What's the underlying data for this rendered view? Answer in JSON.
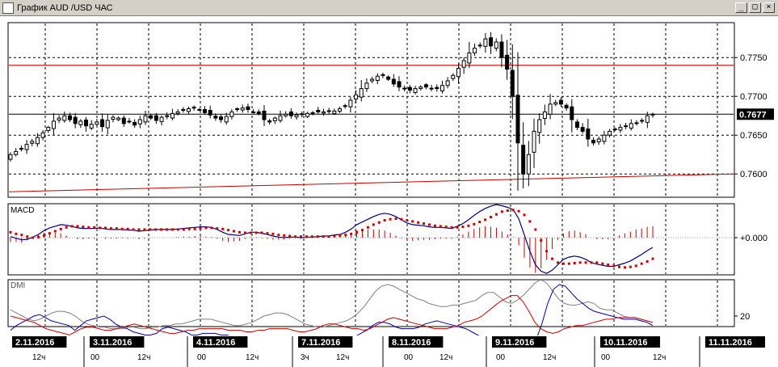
{
  "window": {
    "title": "График AUD /USD  ЧАС",
    "buttons": {
      "minimize": "_",
      "maximize": "□",
      "close": "×"
    }
  },
  "chart_data": [
    {
      "type": "candlestick",
      "panel": "price",
      "ylim": [
        0.757,
        0.7795
      ],
      "y_ticks": [
        "0.7750",
        "0.7700",
        "0.7650",
        "0.7600"
      ],
      "y_tick_values": [
        0.775,
        0.77,
        0.765,
        0.76
      ],
      "current_price": "0.7677",
      "current_price_value": 0.7677,
      "resistance_level": 0.774,
      "trendline": {
        "start": [
          0,
          0.7577
        ],
        "end": [
          127,
          0.76
        ]
      },
      "colors": {
        "resistance": "#cc0000",
        "trendline": "#cc0000",
        "candle": "#000000",
        "current_line": "#000000"
      },
      "close": [
        0.7625,
        0.7629,
        0.7633,
        0.7638,
        0.7642,
        0.7647,
        0.7653,
        0.766,
        0.7668,
        0.7672,
        0.7675,
        0.767,
        0.7665,
        0.7668,
        0.7662,
        0.7664,
        0.7667,
        0.7661,
        0.7669,
        0.7673,
        0.7672,
        0.7665,
        0.7668,
        0.7663,
        0.767,
        0.7675,
        0.7672,
        0.7669,
        0.7673,
        0.7675,
        0.7678,
        0.768,
        0.7682,
        0.7684,
        0.7686,
        0.7683,
        0.7679,
        0.7676,
        0.7672,
        0.767,
        0.7674,
        0.768,
        0.7684,
        0.7685,
        0.7683,
        0.768,
        0.7678,
        0.767,
        0.7667,
        0.7672,
        0.7675,
        0.7677,
        0.7675,
        0.7676,
        0.7677,
        0.7678,
        0.7679,
        0.768,
        0.768,
        0.7681,
        0.7681,
        0.7684,
        0.7688,
        0.7695,
        0.7702,
        0.771,
        0.7717,
        0.7722,
        0.7726,
        0.7728,
        0.7722,
        0.7716,
        0.7712,
        0.771,
        0.7708,
        0.771,
        0.7712,
        0.7712,
        0.771,
        0.771,
        0.7714,
        0.772,
        0.7727,
        0.7736,
        0.7746,
        0.7756,
        0.7762,
        0.7766,
        0.7774,
        0.7765,
        0.777,
        0.775,
        0.7735,
        0.77,
        0.764,
        0.76,
        0.7625,
        0.7655,
        0.767,
        0.768,
        0.769,
        0.7692,
        0.769,
        0.7685,
        0.767,
        0.766,
        0.7655,
        0.7645,
        0.764,
        0.7645,
        0.765,
        0.7655,
        0.7658,
        0.766,
        0.7662,
        0.7665,
        0.7666,
        0.7668,
        0.7675,
        0.7677
      ]
    },
    {
      "type": "line",
      "panel": "indicator",
      "title": "MACD",
      "y_ticks": [
        "+0.000"
      ],
      "series": [
        {
          "style": "line",
          "color": "#000080",
          "values": [
            0.2,
            -0.1,
            -0.4,
            -0.3,
            0.1,
            0.6,
            1.3,
            1.8,
            2.1,
            2.4,
            2.3,
            2.1,
            1.8,
            1.7,
            1.7,
            1.7,
            1.8,
            1.6,
            1.5,
            1.5,
            1.5,
            1.4,
            1.4,
            1.2,
            1.3,
            1.4,
            1.5,
            1.5,
            1.5,
            1.5,
            1.6,
            1.7,
            1.8,
            1.9,
            2.0,
            2.0,
            1.9,
            1.5,
            1.0,
            0.6,
            0.5,
            0.4,
            0.7,
            1.0,
            1.0,
            0.8,
            0.6,
            0.3,
            0.1,
            0.0,
            0.1,
            0.1,
            0.0,
            0.1,
            0.1,
            0.2,
            0.3,
            0.3,
            0.5,
            0.6,
            1.0,
            1.6,
            2.4,
            2.9,
            3.4,
            3.9,
            4.3,
            4.5,
            4.3,
            3.9,
            3.3,
            2.7,
            2.4,
            2.3,
            2.2,
            2.0,
            1.9,
            1.9,
            1.8,
            1.7,
            2.1,
            2.6,
            3.3,
            4.1,
            4.8,
            5.4,
            5.8,
            6.1,
            5.9,
            5.6,
            5.2,
            3.5,
            0.5,
            -2.5,
            -5.0,
            -6.2,
            -6.6,
            -6.0,
            -5.0,
            -4.0,
            -3.6,
            -3.4,
            -3.6,
            -4.0,
            -4.6,
            -4.9,
            -5.1,
            -5.3,
            -5.3,
            -5.0,
            -4.7,
            -4.3,
            -3.7,
            -3.1,
            -2.4,
            -1.8
          ]
        },
        {
          "style": "dots",
          "color": "#cc0000",
          "values": [
            1.0,
            0.7,
            0.5,
            0.2,
            0.0,
            0.1,
            0.4,
            0.8,
            1.2,
            1.6,
            1.9,
            2.1,
            2.1,
            2.0,
            1.9,
            1.9,
            1.8,
            1.8,
            1.7,
            1.7,
            1.6,
            1.6,
            1.5,
            1.5,
            1.5,
            1.5,
            1.5,
            1.5,
            1.5,
            1.5,
            1.5,
            1.5,
            1.6,
            1.6,
            1.7,
            1.8,
            1.8,
            1.7,
            1.6,
            1.4,
            1.2,
            1.0,
            0.9,
            0.9,
            0.9,
            0.9,
            0.8,
            0.7,
            0.5,
            0.4,
            0.3,
            0.2,
            0.2,
            0.2,
            0.2,
            0.2,
            0.2,
            0.2,
            0.3,
            0.4,
            0.5,
            0.7,
            1.0,
            1.4,
            1.9,
            2.4,
            2.8,
            3.2,
            3.4,
            3.5,
            3.4,
            3.2,
            3.0,
            2.8,
            2.6,
            2.4,
            2.2,
            2.1,
            2.0,
            1.9,
            1.9,
            2.0,
            2.2,
            2.5,
            2.9,
            3.3,
            3.8,
            4.3,
            4.8,
            5.0,
            5.1,
            4.9,
            4.2,
            3.0,
            1.5,
            -0.5,
            -2.5,
            -3.9,
            -4.6,
            -4.8,
            -4.8,
            -4.7,
            -4.6,
            -4.6,
            -4.6,
            -4.6,
            -4.8,
            -5.0,
            -5.2,
            -5.4,
            -5.5,
            -5.4,
            -5.2,
            -4.8,
            -4.4,
            -3.9
          ]
        },
        {
          "style": "histogram",
          "color": "#cc0000",
          "values": [
            -0.8,
            -0.8,
            -0.9,
            -0.5,
            0.1,
            0.5,
            0.9,
            1.0,
            0.9,
            0.8,
            0.4,
            0.0,
            -0.3,
            -0.3,
            -0.2,
            -0.2,
            0.0,
            -0.2,
            -0.2,
            -0.2,
            -0.1,
            -0.2,
            -0.1,
            -0.3,
            -0.2,
            -0.1,
            0.0,
            0.0,
            0.0,
            0.0,
            0.1,
            0.2,
            0.2,
            0.3,
            0.3,
            0.2,
            0.1,
            -0.2,
            -0.6,
            -0.8,
            -0.7,
            -0.6,
            -0.2,
            0.1,
            0.1,
            -0.1,
            -0.2,
            -0.4,
            -0.4,
            -0.4,
            -0.2,
            -0.1,
            -0.2,
            -0.1,
            -0.1,
            0.0,
            0.1,
            0.1,
            0.2,
            0.2,
            0.5,
            0.9,
            1.4,
            1.5,
            1.5,
            1.5,
            1.5,
            1.3,
            0.9,
            0.4,
            -0.1,
            -0.5,
            -0.6,
            -0.5,
            -0.4,
            -0.4,
            -0.3,
            -0.2,
            -0.2,
            -0.2,
            0.2,
            0.6,
            1.1,
            1.6,
            1.9,
            2.1,
            2.0,
            1.8,
            1.1,
            0.6,
            0.1,
            -1.4,
            -3.7,
            -5.5,
            -6.5,
            -5.7,
            -4.1,
            -2.1,
            -0.4,
            0.8,
            1.2,
            1.3,
            1.0,
            0.6,
            0.0,
            -0.3,
            -0.3,
            -0.3,
            -0.1,
            0.4,
            0.8,
            1.1,
            1.5,
            1.7,
            2.0,
            2.1
          ]
        }
      ],
      "colors": {
        "zero_line": "#000000"
      }
    },
    {
      "type": "line",
      "panel": "indicator",
      "title": "DMI",
      "y_ticks": [
        "20"
      ],
      "y_tick_values": [
        20
      ],
      "ylim": [
        0,
        45
      ],
      "series": [
        {
          "color": "#808080",
          "values": [
            24,
            22,
            20,
            18,
            17,
            18,
            20,
            22,
            23,
            23,
            22,
            20,
            17,
            15,
            14,
            13,
            13,
            12,
            12,
            12,
            13,
            13,
            12,
            12,
            13,
            13,
            14,
            14,
            15,
            15,
            16,
            17,
            18,
            18,
            18,
            17,
            16,
            15,
            14,
            14,
            15,
            16,
            18,
            20,
            21,
            22,
            22,
            21,
            19,
            17,
            15,
            14,
            13,
            13,
            14,
            15,
            16,
            17,
            19,
            22,
            26,
            31,
            36,
            39,
            40,
            39,
            37,
            35,
            33,
            31,
            30,
            28,
            27,
            26,
            26,
            27,
            27,
            28,
            29,
            30,
            33,
            35,
            35,
            32,
            29,
            28,
            30,
            33,
            37,
            41,
            43,
            41,
            36,
            31,
            28,
            27,
            27,
            28,
            29,
            28,
            25,
            24,
            24,
            22,
            20,
            19,
            19,
            18,
            17,
            16
          ]
        },
        {
          "color": "#0000aa",
          "values": [
            11,
            14,
            16,
            18,
            20,
            21,
            19,
            17,
            16,
            15,
            14,
            11,
            14,
            17,
            18,
            19,
            20,
            18,
            15,
            13,
            12,
            10,
            9,
            8,
            8,
            9,
            12,
            13,
            12,
            11,
            10,
            8,
            8,
            9,
            9,
            9,
            8,
            8,
            7,
            6,
            5,
            6,
            7,
            5,
            5,
            5,
            4,
            3,
            4,
            4,
            4,
            5,
            6,
            5,
            4,
            3,
            3,
            5,
            6,
            7,
            9,
            11,
            14,
            16,
            16,
            15,
            13,
            12,
            12,
            12,
            13,
            15,
            16,
            17,
            16,
            15,
            14,
            13,
            12,
            10,
            8,
            6,
            5,
            4,
            4,
            3,
            3,
            2,
            2,
            2,
            5,
            15,
            28,
            37,
            40,
            39,
            35,
            31,
            28,
            25,
            23,
            22,
            21,
            20,
            19,
            18,
            18,
            18,
            17,
            16,
            14
          ]
        },
        {
          "color": "#cc0000",
          "values": [
            20,
            19,
            18,
            17,
            16,
            14,
            12,
            11,
            10,
            9,
            8,
            10,
            12,
            13,
            13,
            12,
            11,
            11,
            12,
            13,
            14,
            15,
            14,
            13,
            12,
            11,
            10,
            9,
            9,
            10,
            11,
            11,
            12,
            12,
            12,
            12,
            12,
            11,
            11,
            11,
            10,
            10,
            11,
            11,
            12,
            12,
            12,
            12,
            11,
            10,
            10,
            11,
            12,
            14,
            15,
            15,
            14,
            13,
            12,
            12,
            11,
            12,
            14,
            16,
            18,
            19,
            18,
            17,
            16,
            15,
            14,
            13,
            12,
            12,
            12,
            13,
            14,
            16,
            17,
            18,
            20,
            23,
            26,
            29,
            31,
            33,
            33,
            29,
            23,
            16,
            12,
            10,
            9,
            10,
            12,
            13,
            14,
            14,
            15,
            16,
            17,
            18,
            18,
            19,
            19,
            19,
            19,
            18,
            17,
            16
          ]
        }
      ]
    }
  ],
  "x_axis": {
    "date_labels": [
      "2.11.2016",
      "3.11.2016",
      "4.11.2016",
      "7.11.2016",
      "8.11.2016",
      "9.11.2016",
      "10.11.2016",
      "11.11.2016"
    ],
    "hour_labels": [
      "12ч",
      "00",
      "12ч",
      "00",
      "12ч",
      "3ч",
      "12ч",
      "00",
      "12ч",
      "00",
      "12ч",
      "00",
      "12ч"
    ]
  }
}
